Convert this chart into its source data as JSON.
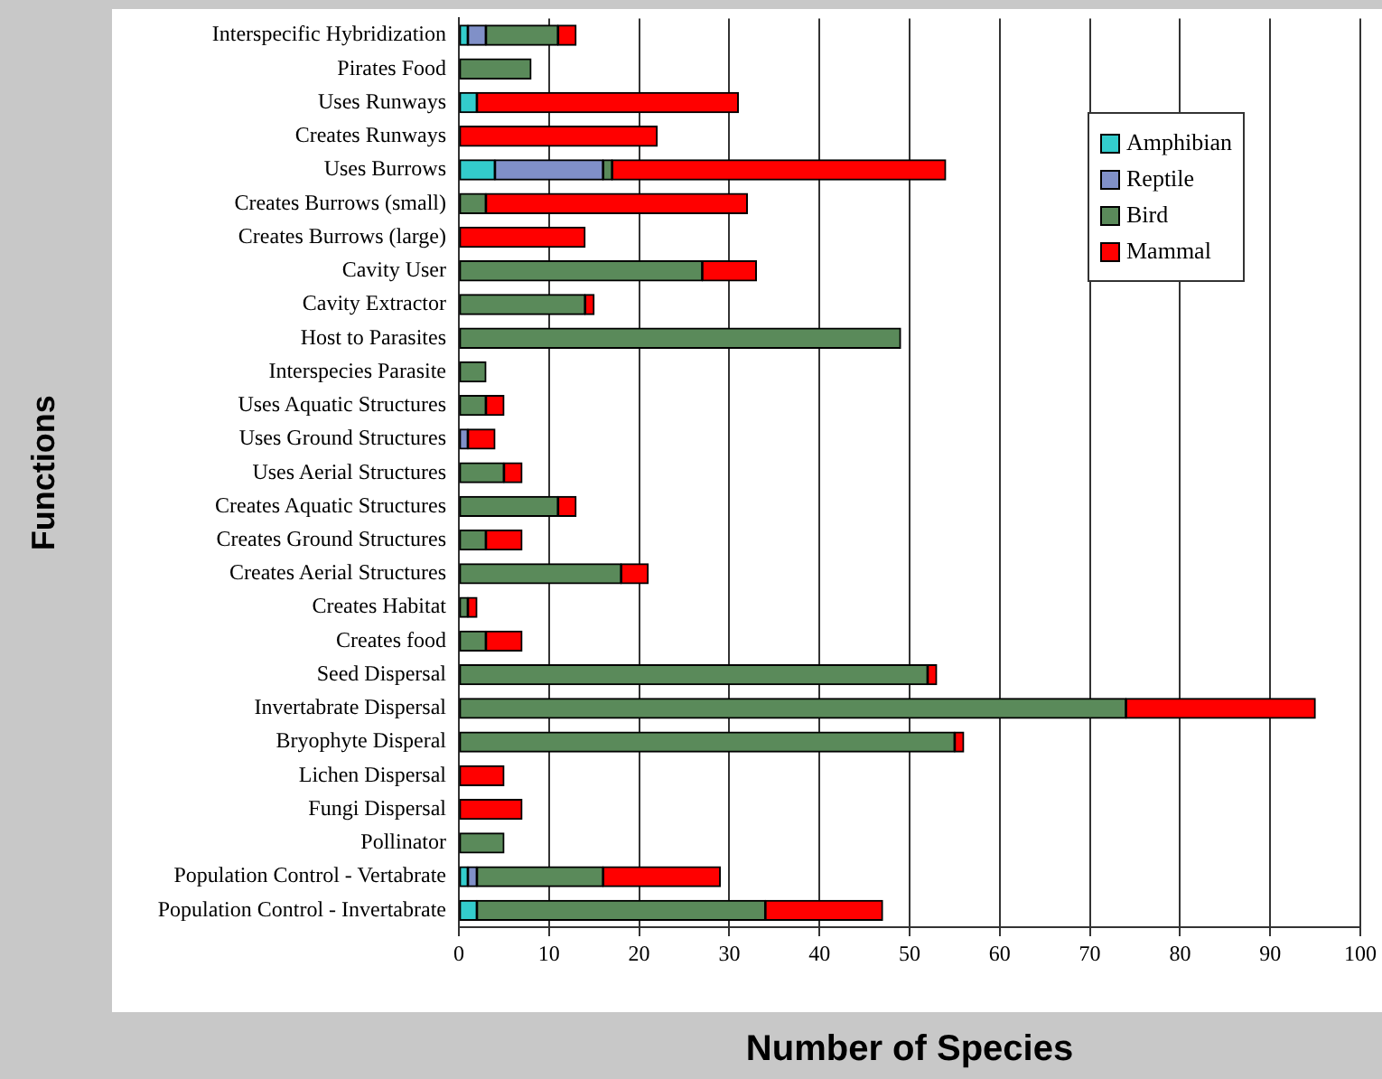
{
  "chart_data": {
    "type": "bar",
    "orientation": "horizontal",
    "stacked": true,
    "xlabel": "Number of Species",
    "ylabel": "Functions",
    "categories": [
      "Interspecific Hybridization",
      "Pirates Food",
      "Uses Runways",
      "Creates Runways",
      "Uses Burrows",
      "Creates Burrows (small)",
      "Creates Burrows (large)",
      "Cavity User",
      "Cavity Extractor",
      "Host to Parasites",
      "Interspecies Parasite",
      "Uses Aquatic Structures",
      "Uses Ground Structures",
      "Uses Aerial Structures",
      "Creates Aquatic Structures",
      "Creates Ground Structures",
      "Creates Aerial Structures",
      "Creates Habitat",
      "Creates food",
      "Seed Dispersal",
      "Invertabrate Dispersal",
      "Bryophyte Disperal",
      "Lichen Dispersal",
      "Fungi Dispersal",
      "Pollinator",
      "Population Control - Vertabrate",
      "Population Control - Invertabrate"
    ],
    "series": [
      {
        "name": "Amphibian",
        "color": "#33cccc",
        "values": [
          1,
          null,
          2,
          null,
          4,
          null,
          null,
          null,
          null,
          null,
          null,
          null,
          null,
          null,
          null,
          null,
          null,
          null,
          null,
          null,
          null,
          null,
          null,
          null,
          null,
          1,
          2
        ]
      },
      {
        "name": "Reptile",
        "color": "#8090c8",
        "values": [
          2,
          null,
          null,
          null,
          12,
          null,
          null,
          null,
          null,
          null,
          null,
          null,
          1,
          null,
          null,
          null,
          null,
          null,
          null,
          null,
          null,
          null,
          null,
          null,
          null,
          1,
          null
        ]
      },
      {
        "name": "Bird",
        "color": "#5a8a5a",
        "values": [
          8,
          8,
          null,
          null,
          1,
          3,
          null,
          27,
          14,
          49,
          3,
          3,
          null,
          5,
          11,
          3,
          18,
          1,
          3,
          52,
          74,
          55,
          null,
          null,
          5,
          14,
          32
        ]
      },
      {
        "name": "Mammal",
        "color": "#ff0000",
        "values": [
          2,
          null,
          29,
          22,
          37,
          29,
          14,
          6,
          1,
          null,
          null,
          2,
          3,
          2,
          2,
          4,
          3,
          1,
          4,
          1,
          21,
          1,
          5,
          7,
          null,
          13,
          13
        ]
      }
    ],
    "xlim": [
      0,
      100
    ],
    "xticks": [
      0,
      10,
      20,
      30,
      40,
      50,
      60,
      70,
      80,
      90,
      100
    ],
    "grid": "x",
    "legend": "top right"
  }
}
